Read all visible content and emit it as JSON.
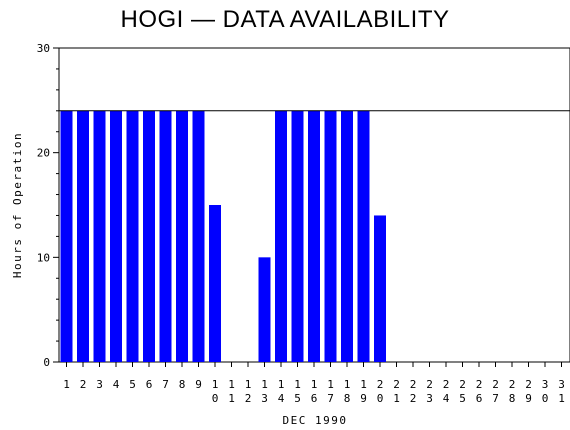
{
  "chart_data": {
    "type": "bar",
    "title": "HOGI — DATA AVAILABILITY",
    "xlabel": "DEC 1990",
    "ylabel": "Hours of Operation",
    "ylim": [
      0,
      30
    ],
    "yticks": [
      0,
      10,
      20,
      30
    ],
    "reference_line": 24,
    "bar_color": "#0000ff",
    "categories": [
      "1",
      "2",
      "3",
      "4",
      "5",
      "6",
      "7",
      "8",
      "9",
      "10",
      "11",
      "12",
      "13",
      "14",
      "15",
      "16",
      "17",
      "18",
      "19",
      "20",
      "21",
      "22",
      "23",
      "24",
      "25",
      "26",
      "27",
      "28",
      "29",
      "30",
      "31"
    ],
    "values": [
      24,
      24,
      24,
      24,
      24,
      24,
      24,
      24,
      24,
      15,
      0,
      0,
      10,
      24,
      24,
      24,
      24,
      24,
      24,
      14,
      0,
      0,
      0,
      0,
      0,
      0,
      0,
      0,
      0,
      0,
      0
    ]
  }
}
